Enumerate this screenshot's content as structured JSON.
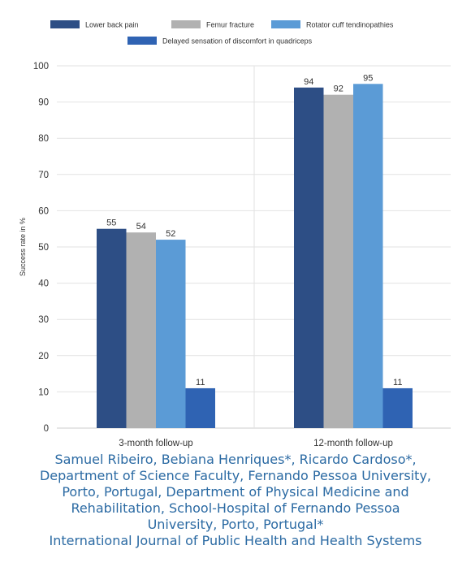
{
  "chart_data": {
    "type": "bar",
    "categories": [
      "3-month follow-up",
      "12-month follow-up"
    ],
    "series": [
      {
        "name": "Lower back pain",
        "color": "#2d4e85",
        "values": [
          55,
          94
        ]
      },
      {
        "name": "Femur fracture",
        "color": "#b1b1b1",
        "values": [
          54,
          92
        ]
      },
      {
        "name": "Rotator cuff tendinopathies",
        "color": "#5b9bd6",
        "values": [
          52,
          95
        ]
      },
      {
        "name": "Delayed sensation of discomfort in quadriceps",
        "color": "#2f63b3",
        "values": [
          11,
          11
        ]
      }
    ],
    "ylabel": "Success rate in %",
    "ylim": [
      0,
      100
    ],
    "yticks": [
      0,
      10,
      20,
      30,
      40,
      50,
      60,
      70,
      80,
      90,
      100
    ],
    "grid": true,
    "legend": "top"
  },
  "caption": {
    "lines": [
      "Samuel Ribeiro, Bebiana Henriques*, Ricardo Cardoso*,",
      "Department of Science Faculty, Fernando Pessoa University,",
      "Porto, Portugal, Department of Physical Medicine and",
      "Rehabilitation, School-Hospital of Fernando Pessoa",
      "University, Porto, Portugal*",
      "International Journal of Public Health and Health Systems"
    ]
  }
}
